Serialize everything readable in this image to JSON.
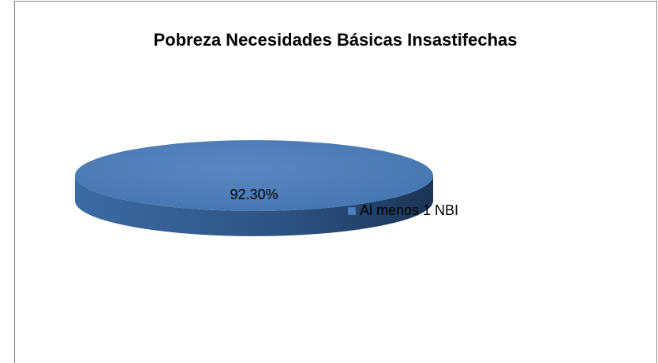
{
  "chart_data": {
    "type": "pie",
    "title": "Pobreza Necesidades  Básicas  Insastifechas",
    "categories": [
      "Al menos 1 NBI"
    ],
    "values": [
      92.3
    ],
    "value_labels": [
      "92.30%"
    ],
    "colors": [
      "#4f81bd"
    ],
    "legend": "right"
  }
}
